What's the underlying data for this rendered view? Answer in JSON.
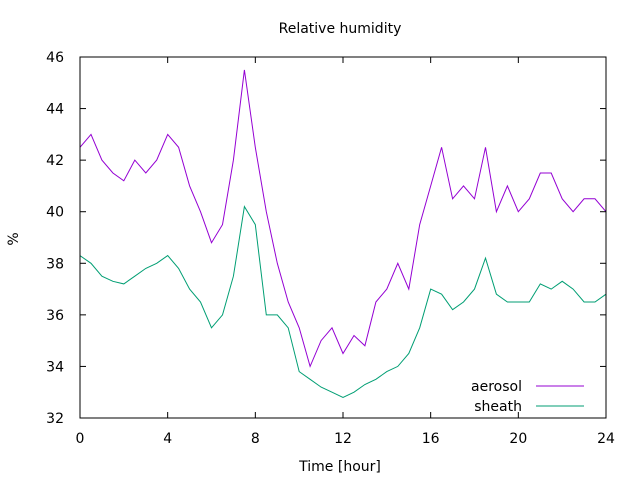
{
  "chart_data": {
    "type": "line",
    "title": "Relative humidity",
    "xlabel": "Time [hour]",
    "ylabel": "%",
    "xlim": [
      0,
      24
    ],
    "ylim": [
      32,
      46
    ],
    "xticks": [
      0,
      4,
      8,
      12,
      16,
      20,
      24
    ],
    "yticks": [
      32,
      34,
      36,
      38,
      40,
      42,
      44,
      46
    ],
    "grid": false,
    "legend_position": "bottom-right",
    "series": [
      {
        "name": "aerosol",
        "color": "#9400d3",
        "x": [
          0,
          0.5,
          1,
          1.5,
          2,
          2.5,
          3,
          3.5,
          4,
          4.5,
          5,
          5.5,
          6,
          6.5,
          7,
          7.5,
          8,
          8.5,
          9,
          9.5,
          10,
          10.5,
          11,
          11.5,
          12,
          12.5,
          13,
          13.5,
          14,
          14.5,
          15,
          15.5,
          16,
          16.5,
          17,
          17.5,
          18,
          18.5,
          19,
          19.5,
          20,
          20.5,
          21,
          21.5,
          22,
          22.5,
          23,
          23.5,
          24
        ],
        "y": [
          42.5,
          43.0,
          42.0,
          41.5,
          41.2,
          42.0,
          41.5,
          42.0,
          43.0,
          42.5,
          41.0,
          40.0,
          38.8,
          39.5,
          42.0,
          45.5,
          42.5,
          40.0,
          38.0,
          36.5,
          35.5,
          34.0,
          35.0,
          35.5,
          34.5,
          35.2,
          34.8,
          36.5,
          37.0,
          38.0,
          37.0,
          39.5,
          41.0,
          42.5,
          40.5,
          41.0,
          40.5,
          42.5,
          40.0,
          41.0,
          40.0,
          40.5,
          41.5,
          41.5,
          40.5,
          40.0,
          40.5,
          40.5,
          40.0
        ]
      },
      {
        "name": "sheath",
        "color": "#009e73",
        "x": [
          0,
          0.5,
          1,
          1.5,
          2,
          2.5,
          3,
          3.5,
          4,
          4.5,
          5,
          5.5,
          6,
          6.5,
          7,
          7.5,
          8,
          8.5,
          9,
          9.5,
          10,
          10.5,
          11,
          11.5,
          12,
          12.5,
          13,
          13.5,
          14,
          14.5,
          15,
          15.5,
          16,
          16.5,
          17,
          17.5,
          18,
          18.5,
          19,
          19.5,
          20,
          20.5,
          21,
          21.5,
          22,
          22.5,
          23,
          23.5,
          24
        ],
        "y": [
          38.3,
          38.0,
          37.5,
          37.3,
          37.2,
          37.5,
          37.8,
          38.0,
          38.3,
          37.8,
          37.0,
          36.5,
          35.5,
          36.0,
          37.5,
          40.2,
          39.5,
          36.0,
          36.0,
          35.5,
          33.8,
          33.5,
          33.2,
          33.0,
          32.8,
          33.0,
          33.3,
          33.5,
          33.8,
          34.0,
          34.5,
          35.5,
          37.0,
          36.8,
          36.2,
          36.5,
          37.0,
          38.2,
          36.8,
          36.5,
          36.5,
          36.5,
          37.2,
          37.0,
          37.3,
          37.0,
          36.5,
          36.5,
          36.8
        ]
      }
    ]
  }
}
